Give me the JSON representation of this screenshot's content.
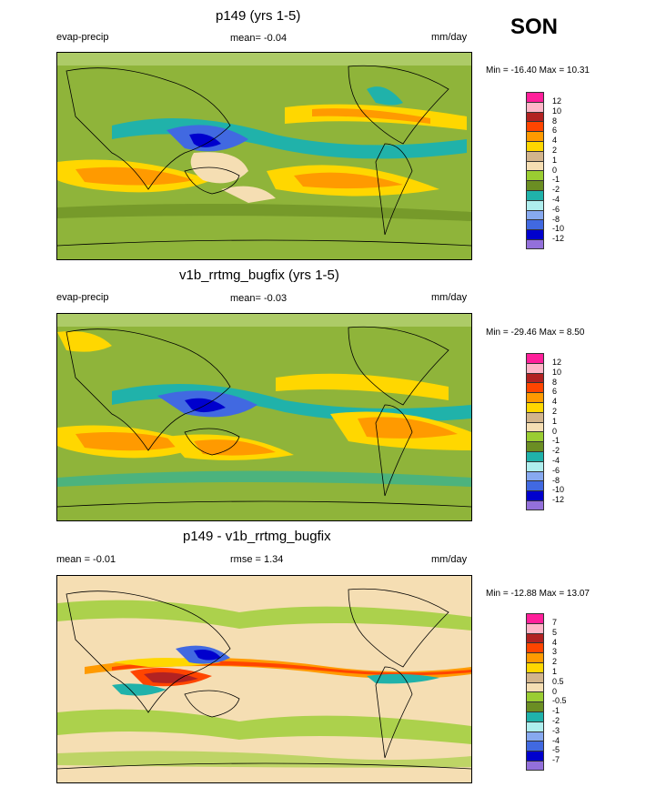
{
  "season": "SON",
  "panels": [
    {
      "title": "p149 (yrs 1-5)",
      "left_label": "evap-precip",
      "center_label": "mean=  -0.04",
      "units": "mm/day",
      "minmax": "Min = -16.40 Max =  10.31",
      "colorbar_labels": [
        "12",
        "10",
        "8",
        "6",
        "4",
        "2",
        "1",
        "0",
        "-1",
        "-2",
        "-4",
        "-6",
        "-8",
        "-10",
        "-12"
      ],
      "colorbar_colors": [
        "#ff1f9a",
        "#ffb6c8",
        "#b22222",
        "#ff4500",
        "#ff9a00",
        "#ffd700",
        "#d2b48c",
        "#f5deb3",
        "#9acd32",
        "#6b8e23",
        "#20b2aa",
        "#afeeee",
        "#87a9f0",
        "#4169e1",
        "#0000cd",
        "#9370db"
      ]
    },
    {
      "title": "v1b_rrtmg_bugfix (yrs 1-5)",
      "left_label": "evap-precip",
      "center_label": "mean=  -0.03",
      "units": "mm/day",
      "minmax": "Min = -29.46 Max =   8.50",
      "colorbar_labels": [
        "12",
        "10",
        "8",
        "6",
        "4",
        "2",
        "1",
        "0",
        "-1",
        "-2",
        "-4",
        "-6",
        "-8",
        "-10",
        "-12"
      ],
      "colorbar_colors": [
        "#ff1f9a",
        "#ffb6c8",
        "#b22222",
        "#ff4500",
        "#ff9a00",
        "#ffd700",
        "#d2b48c",
        "#f5deb3",
        "#9acd32",
        "#6b8e23",
        "#20b2aa",
        "#afeeee",
        "#87a9f0",
        "#4169e1",
        "#0000cd",
        "#9370db"
      ]
    },
    {
      "title": "p149 - v1b_rrtmg_bugfix",
      "left_label": "mean =  -0.01",
      "center_label": "rmse =   1.34",
      "units": "mm/day",
      "minmax": "Min = -12.88 Max =  13.07",
      "colorbar_labels": [
        "7",
        "5",
        "4",
        "3",
        "2",
        "1",
        "0.5",
        "0",
        "-0.5",
        "-1",
        "-2",
        "-3",
        "-4",
        "-5",
        "-7"
      ],
      "colorbar_colors": [
        "#ff1f9a",
        "#ffb6c8",
        "#b22222",
        "#ff4500",
        "#ff9a00",
        "#ffd700",
        "#d2b48c",
        "#f5deb3",
        "#9acd32",
        "#6b8e23",
        "#20b2aa",
        "#afeeee",
        "#87a9f0",
        "#4169e1",
        "#0000cd",
        "#9370db"
      ]
    }
  ]
}
